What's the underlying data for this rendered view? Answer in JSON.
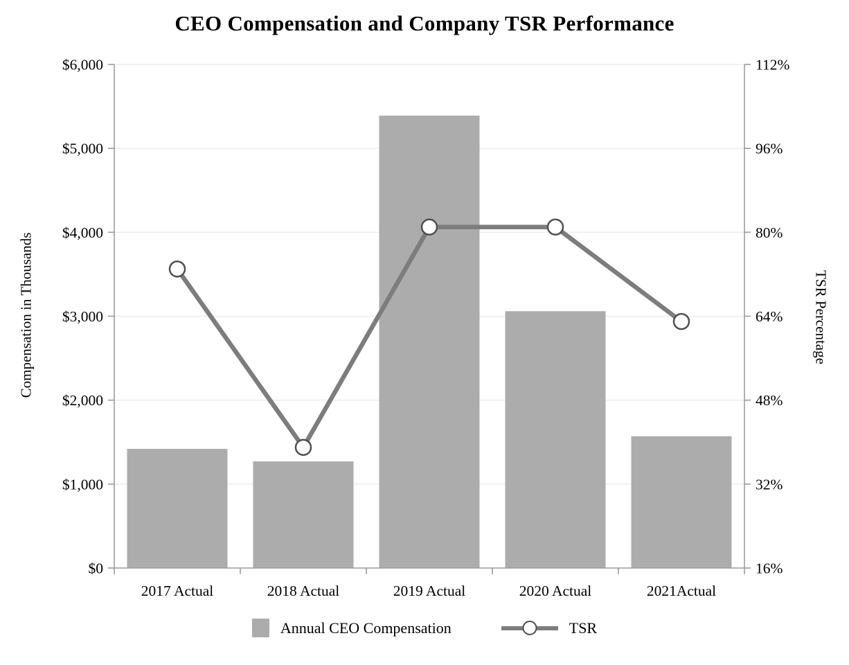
{
  "chart_data": {
    "type": "combo_bar_line",
    "title": "CEO Compensation and Company TSR Performance",
    "categories": [
      "2017 Actual",
      "2018 Actual",
      "2019 Actual",
      "2020 Actual",
      "2021Actual"
    ],
    "series": [
      {
        "name": "Annual CEO Compensation",
        "type": "bar",
        "axis": "left",
        "values": [
          1420,
          1270,
          5390,
          3060,
          1570
        ]
      },
      {
        "name": "TSR",
        "type": "line",
        "axis": "right",
        "values": [
          73,
          39,
          81,
          81,
          63
        ]
      }
    ],
    "left_axis": {
      "label": "Compensation in Thousands",
      "min": 0,
      "max": 6000,
      "tick_step": 1000,
      "format": "currency"
    },
    "right_axis": {
      "label": "TSR Percentage",
      "min": 16,
      "max": 112,
      "tick_step": 16,
      "format": "percent"
    },
    "legend_position": "bottom",
    "grid": true,
    "colors": {
      "bar": "#acacac",
      "line": "#7d7d7d",
      "marker_ring": "#4f4f4f",
      "marker_fill": "#ffffff",
      "grid": "#ebebeb",
      "axis": "#9b9b9b",
      "text": "#000000"
    }
  }
}
